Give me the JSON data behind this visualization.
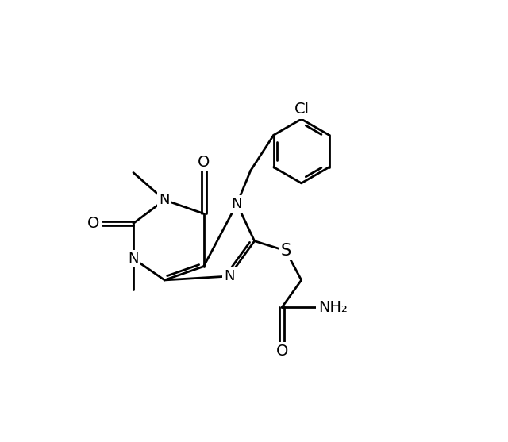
{
  "background_color": "#ffffff",
  "line_color": "#000000",
  "line_width": 2.0,
  "font_size": 13,
  "figsize": [
    6.4,
    5.57
  ],
  "dpi": 100,
  "xlim": [
    0,
    10
  ],
  "ylim": [
    0,
    8.71
  ]
}
